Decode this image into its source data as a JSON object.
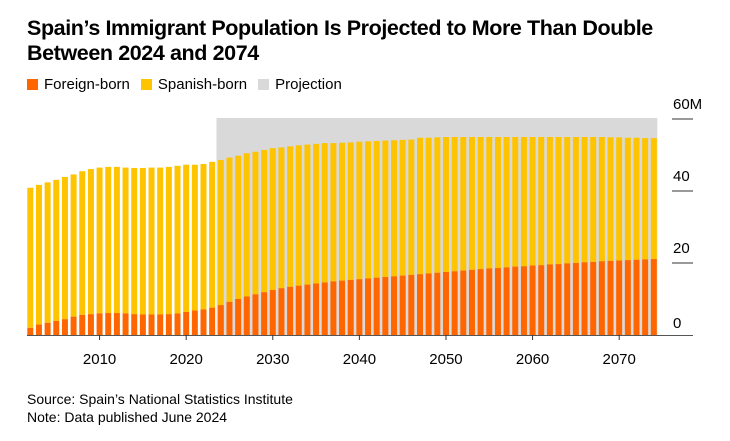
{
  "header": {
    "title": "Spain’s Immigrant Population Is Projected to More Than Double Between 2024 and 2074"
  },
  "legend": [
    {
      "label": "Foreign-born",
      "color": "#ff6600"
    },
    {
      "label": "Spanish-born",
      "color": "#ffc400"
    },
    {
      "label": "Projection",
      "color": "#d9d9d9"
    }
  ],
  "footer": {
    "source": "Source: Spain’s National Statistics Institute",
    "note": "Note: Data published June 2024"
  },
  "chart_data": {
    "type": "bar",
    "stacked": true,
    "title": "Spain’s Immigrant Population Is Projected to More Than Double Between 2024 and 2074",
    "xlabel": "",
    "ylabel": "",
    "ylim": [
      0,
      60
    ],
    "y_unit": "M",
    "y_ticks": [
      0,
      20,
      40,
      60
    ],
    "y_tick_labels": [
      "0",
      "20",
      "40",
      "60M"
    ],
    "x_ticks": [
      2010,
      2020,
      2030,
      2040,
      2050,
      2060,
      2070
    ],
    "x_tick_labels": [
      "2010",
      "2020",
      "2030",
      "2040",
      "2050",
      "2060",
      "2070"
    ],
    "legend_position": "top-left",
    "y_axis_position": "right",
    "grid": false,
    "projection_range": [
      2024,
      2074
    ],
    "categories": [
      2002,
      2003,
      2004,
      2005,
      2006,
      2007,
      2008,
      2009,
      2010,
      2011,
      2012,
      2013,
      2014,
      2015,
      2016,
      2017,
      2018,
      2019,
      2020,
      2021,
      2022,
      2023,
      2024,
      2025,
      2026,
      2027,
      2028,
      2029,
      2030,
      2031,
      2032,
      2033,
      2034,
      2035,
      2036,
      2037,
      2038,
      2039,
      2040,
      2041,
      2042,
      2043,
      2044,
      2045,
      2046,
      2047,
      2048,
      2049,
      2050,
      2051,
      2052,
      2053,
      2054,
      2055,
      2056,
      2057,
      2058,
      2059,
      2060,
      2061,
      2062,
      2063,
      2064,
      2065,
      2066,
      2067,
      2068,
      2069,
      2070,
      2071,
      2072,
      2073,
      2074
    ],
    "series": [
      {
        "name": "Foreign-born",
        "color": "#ff6600",
        "values": [
          2.0,
          2.9,
          3.4,
          3.9,
          4.4,
          5.1,
          5.6,
          5.8,
          6.0,
          6.1,
          6.1,
          6.0,
          5.8,
          5.7,
          5.7,
          5.7,
          5.8,
          6.0,
          6.4,
          6.8,
          7.1,
          7.6,
          8.3,
          9.2,
          10.0,
          10.7,
          11.3,
          11.9,
          12.5,
          13.0,
          13.4,
          13.7,
          14.0,
          14.3,
          14.6,
          14.9,
          15.1,
          15.3,
          15.5,
          15.7,
          15.9,
          16.1,
          16.3,
          16.5,
          16.7,
          16.9,
          17.1,
          17.3,
          17.5,
          17.7,
          17.9,
          18.1,
          18.3,
          18.5,
          18.6,
          18.8,
          19.0,
          19.1,
          19.3,
          19.4,
          19.6,
          19.7,
          19.9,
          20.0,
          20.2,
          20.3,
          20.5,
          20.6,
          20.7,
          20.8,
          20.9,
          21.0,
          21.1
        ]
      },
      {
        "name": "Spanish-born",
        "color": "#ffc400",
        "values": [
          38.9,
          38.8,
          39.0,
          39.2,
          39.5,
          39.5,
          39.9,
          40.3,
          40.5,
          40.6,
          40.6,
          40.5,
          40.6,
          40.7,
          40.8,
          40.8,
          40.9,
          41.0,
          40.9,
          40.5,
          40.4,
          40.5,
          40.3,
          40.1,
          39.8,
          39.8,
          39.6,
          39.5,
          39.4,
          39.1,
          39.0,
          39.0,
          38.9,
          38.8,
          38.7,
          38.4,
          38.3,
          38.2,
          38.2,
          38.1,
          38.0,
          37.9,
          37.8,
          37.7,
          37.6,
          37.9,
          37.7,
          37.6,
          37.5,
          37.3,
          37.1,
          36.9,
          36.7,
          36.5,
          36.4,
          36.2,
          36.0,
          35.9,
          35.7,
          35.6,
          35.4,
          35.3,
          35.1,
          35.0,
          34.8,
          34.7,
          34.5,
          34.3,
          34.2,
          34.0,
          33.9,
          33.7,
          33.6
        ]
      }
    ]
  }
}
